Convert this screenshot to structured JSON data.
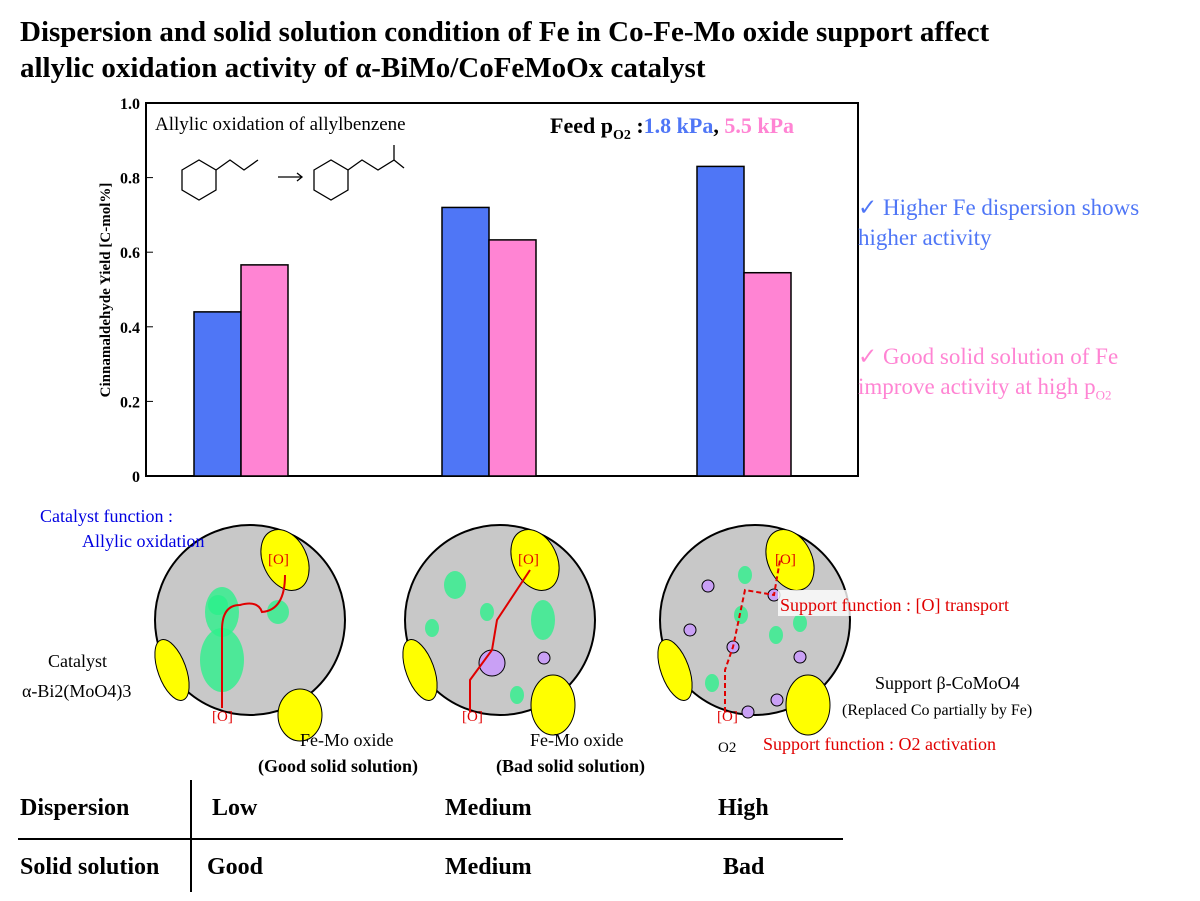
{
  "title_line1": "Dispersion and solid solution condition of Fe in Co-Fe-Mo oxide support affect",
  "title_line2": "allylic oxidation activity of α-BiMo/CoFeMoOx catalyst",
  "chart_data": {
    "type": "bar",
    "ylabel": "Cinnamaldehyde Yield [C-mol%]",
    "ylim": [
      0,
      1.0
    ],
    "yticks": [
      "0",
      "0.2",
      "0.4",
      "0.6",
      "0.8",
      "1.0"
    ],
    "categories": [
      "",
      "",
      ""
    ],
    "series": [
      {
        "name": "1.8 kPa",
        "color": "#4f76f6",
        "values": [
          0.44,
          0.72,
          0.83
        ]
      },
      {
        "name": "5.5 kPa",
        "color": "#ff84d3",
        "values": [
          0.566,
          0.633,
          0.545
        ]
      }
    ],
    "annotation": "Allylic oxidation of allylbenzene",
    "legend_prefix": "Feed p",
    "legend_subscript": "O2",
    "legend_separator": ",",
    "grid": false
  },
  "notes": {
    "blue_check": "✓",
    "blue_text": "Higher Fe dispersion shows higher activity",
    "pink_check": "✓",
    "pink_text": "Good solid solution of Fe improve activity at high p",
    "pink_sub": "O2"
  },
  "diagram": {
    "catalyst_function": "Catalyst function :",
    "allylic_oxidation": "Allylic oxidation",
    "catalyst": "Catalyst",
    "catalyst_formula": "α-Bi2(MoO4)3",
    "oxygen": "[O]",
    "femo_good": "Fe-Mo oxide",
    "femo_good_sub": "(Good solid solution)",
    "femo_bad": "Fe-Mo oxide",
    "femo_bad_sub": "(Bad solid solution)",
    "transport": "Support function : [O] transport",
    "support": "Support β-CoMoO4",
    "support_sub": "(Replaced Co partially by Fe)",
    "o2": "O2",
    "activation": "Support function : O2 activation"
  },
  "table": {
    "rows": [
      {
        "header": "Dispersion",
        "values": [
          "Low",
          "Medium",
          "High"
        ]
      },
      {
        "header": "Solid solution",
        "values": [
          "Good",
          "Medium",
          "Bad"
        ]
      }
    ]
  },
  "colors": {
    "blue": "#4f76f6",
    "pink": "#ff84d3",
    "catalyst": "#ffff00",
    "support": "#c8c8c8",
    "fe": "#2ef08c",
    "femo_bad": "#c9a0f5",
    "oxygen_path": "#e00000",
    "dark_blue": "#0000e0"
  }
}
